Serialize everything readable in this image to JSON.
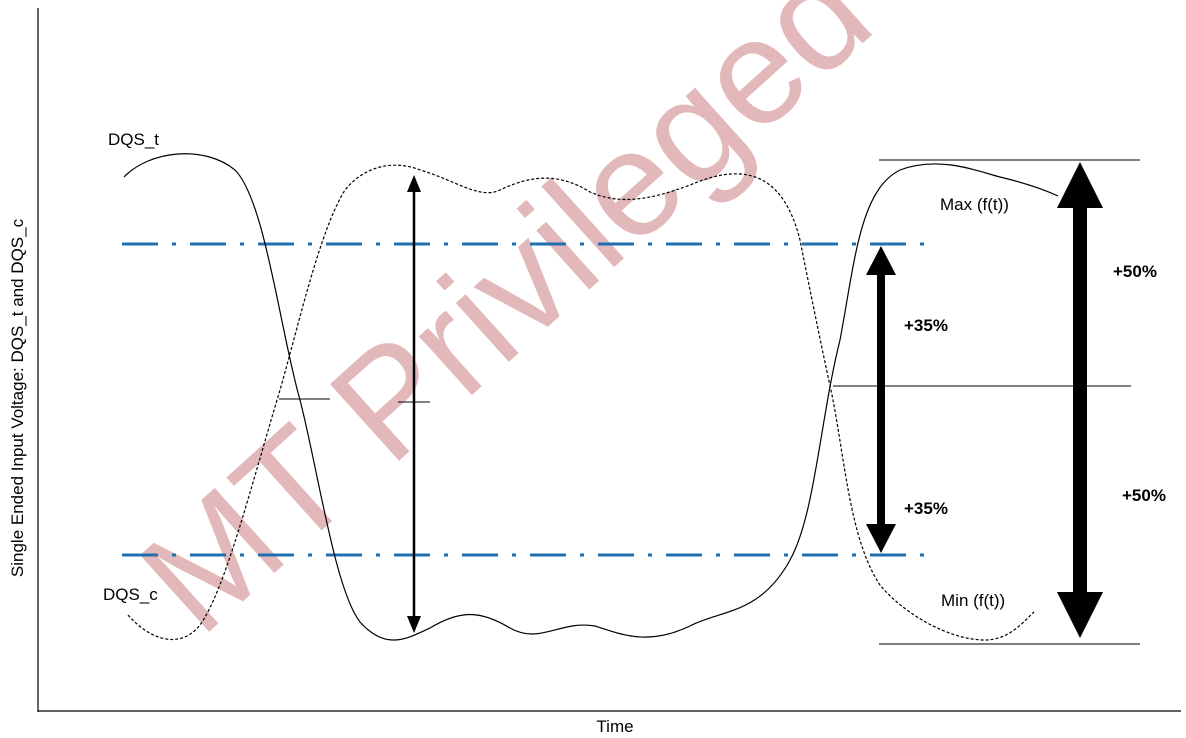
{
  "diagram": {
    "y_axis_label": "Single Ended Input Voltage: DQS_t and DQS_c",
    "x_axis_label": "Time",
    "signal_true_label": "DQS_t",
    "signal_comp_label": "DQS_c",
    "max_label": "Max (f(t))",
    "min_label": "Min (f(t))",
    "upper_inner_pct": "+35%",
    "lower_inner_pct": "+35%",
    "upper_outer_pct": "+50%",
    "lower_outer_pct": "+50%",
    "watermark": "MT Privileged and",
    "colors": {
      "threshold_line": "#1f6fb0",
      "watermark": "#dca7aa",
      "line": "#000000"
    }
  }
}
